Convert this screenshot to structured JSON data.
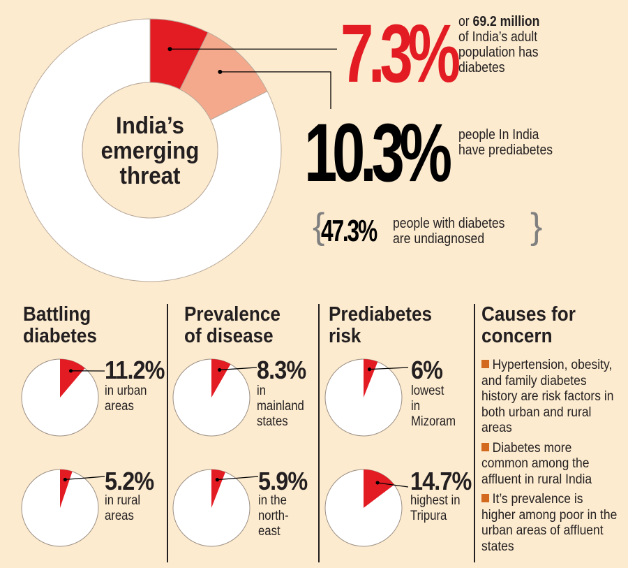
{
  "colors": {
    "background": "#fcebcf",
    "diabetes_red": "#e31b23",
    "prediabetes_salmon": "#f5a98c",
    "remainder_white": "#ffffff",
    "bullet_orange": "#d2691e",
    "text_dark": "#231f20"
  },
  "headline": {
    "center_title_lines": [
      "India’s",
      "emerging",
      "threat"
    ],
    "diabetes_pct": "7.3%",
    "diabetes_desc_prefix": "or ",
    "diabetes_desc_bold": "69.2 million",
    "diabetes_desc_lines": [
      "of India’s adult",
      "population has",
      "diabetes"
    ],
    "prediabetes_pct": "10.3%",
    "prediabetes_desc_lines": [
      "people In India",
      "have prediabetes"
    ],
    "undiagnosed_pct": "47.3%",
    "undiagnosed_desc_lines": [
      "people with diabetes",
      "are undiagnosed"
    ],
    "brace_open": "{",
    "brace_close": "}"
  },
  "chart_data": [
    {
      "type": "pie",
      "title": "India’s emerging threat",
      "variant": "donut",
      "categories": [
        "Diabetes",
        "Prediabetes",
        "Other"
      ],
      "values": [
        7.3,
        10.3,
        82.4
      ],
      "labels": [
        "7.3%",
        "10.3%",
        ""
      ]
    },
    {
      "type": "pie",
      "group": "Battling diabetes",
      "categories": [
        "In urban areas",
        "Rest"
      ],
      "values": [
        11.2,
        88.8
      ],
      "label": "11.2%",
      "caption": [
        "in urban",
        "areas"
      ]
    },
    {
      "type": "pie",
      "group": "Battling diabetes",
      "categories": [
        "In rural areas",
        "Rest"
      ],
      "values": [
        5.2,
        94.8
      ],
      "label": "5.2%",
      "caption": [
        "in rural",
        "areas"
      ]
    },
    {
      "type": "pie",
      "group": "Prevalence of disease",
      "categories": [
        "In mainland states",
        "Rest"
      ],
      "values": [
        8.3,
        91.7
      ],
      "label": "8.3%",
      "caption": [
        "in",
        "mainland",
        "states"
      ]
    },
    {
      "type": "pie",
      "group": "Prevalence of disease",
      "categories": [
        "In the north-east",
        "Rest"
      ],
      "values": [
        5.9,
        94.1
      ],
      "label": "5.9%",
      "caption": [
        "in the",
        "north-",
        "east"
      ]
    },
    {
      "type": "pie",
      "group": "Prediabetes risk",
      "categories": [
        "Lowest in Mizoram",
        "Rest"
      ],
      "values": [
        6,
        94
      ],
      "label": "6%",
      "caption": [
        "lowest",
        "in",
        "Mizoram"
      ]
    },
    {
      "type": "pie",
      "group": "Prediabetes risk",
      "categories": [
        "Highest in Tripura",
        "Rest"
      ],
      "values": [
        14.7,
        85.3
      ],
      "label": "14.7%",
      "caption": [
        "highest in",
        "Tripura"
      ]
    }
  ],
  "sections": {
    "battling": {
      "title_lines": [
        "Battling",
        "diabetes"
      ]
    },
    "prevalence": {
      "title_lines": [
        "Prevalence",
        "of disease"
      ]
    },
    "prediabetes": {
      "title_lines": [
        "Prediabetes",
        "risk"
      ]
    },
    "causes": {
      "title_lines": [
        "Causes for",
        "concern"
      ],
      "items": [
        "Hypertension, obesity, and family diabetes history are risk factors in both urban and rural areas",
        "Diabetes more common among the affluent in rural India",
        "It’s prevalence is higher among poor in the urban areas of affluent states"
      ]
    }
  }
}
